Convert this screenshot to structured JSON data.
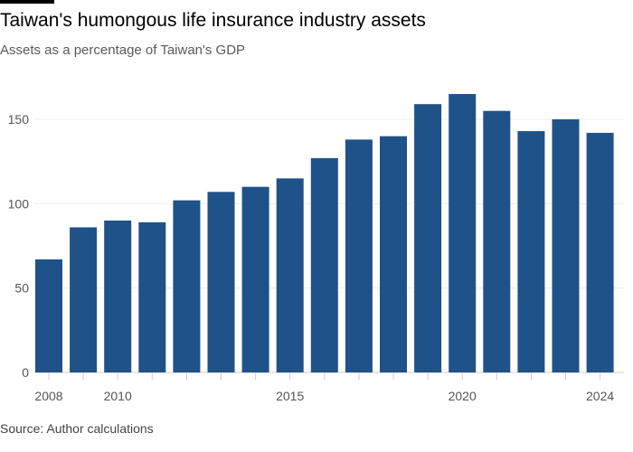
{
  "chart_data": {
    "type": "bar",
    "title": "Taiwan's humongous life insurance industry assets",
    "subtitle": "Assets as a percentage of Taiwan's GDP",
    "source": "Source: Author calculations",
    "categories": [
      "2008",
      "2009",
      "2010",
      "2011",
      "2012",
      "2013",
      "2014",
      "2015",
      "2016",
      "2017",
      "2018",
      "2019",
      "2020",
      "2021",
      "2022",
      "2023",
      "2024"
    ],
    "values": [
      67,
      86,
      90,
      89,
      102,
      107,
      110,
      115,
      127,
      138,
      140,
      159,
      165,
      155,
      143,
      150,
      142
    ],
    "x_tick_labels": [
      "2008",
      "2010",
      "2015",
      "2020",
      "2024"
    ],
    "y_ticks": [
      0,
      50,
      100,
      150
    ],
    "ylim": [
      0,
      170
    ],
    "grid": true,
    "color": "#1f5289"
  }
}
